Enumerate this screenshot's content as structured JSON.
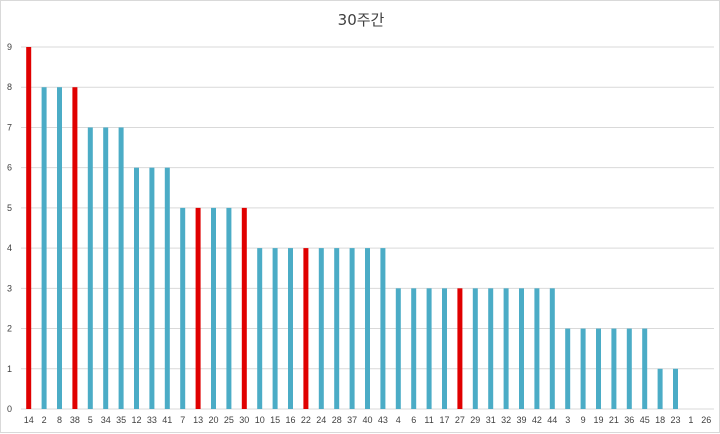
{
  "chart_data": {
    "type": "bar",
    "title": "30주간",
    "xlabel": "",
    "ylabel": "",
    "ylim": [
      0,
      9
    ],
    "yticks": [
      0,
      1,
      2,
      3,
      4,
      5,
      6,
      7,
      8,
      9
    ],
    "grid": true,
    "legend": "none",
    "colors": {
      "default": "#4bacc6",
      "highlight": "#e00000",
      "grid": "#d9d9d9"
    },
    "categories": [
      "14",
      "2",
      "8",
      "38",
      "5",
      "34",
      "35",
      "12",
      "33",
      "41",
      "7",
      "13",
      "20",
      "25",
      "30",
      "10",
      "15",
      "16",
      "22",
      "24",
      "28",
      "37",
      "40",
      "43",
      "4",
      "6",
      "11",
      "17",
      "27",
      "29",
      "31",
      "32",
      "39",
      "42",
      "44",
      "3",
      "9",
      "19",
      "21",
      "36",
      "45",
      "18",
      "23",
      "1",
      "26"
    ],
    "values": [
      9,
      8,
      8,
      8,
      7,
      7,
      7,
      6,
      6,
      6,
      5,
      5,
      5,
      5,
      5,
      4,
      4,
      4,
      4,
      4,
      4,
      4,
      4,
      4,
      3,
      3,
      3,
      3,
      3,
      3,
      3,
      3,
      3,
      3,
      3,
      2,
      2,
      2,
      2,
      2,
      2,
      1,
      1,
      0,
      0
    ],
    "highlighted": [
      "14",
      "38",
      "13",
      "30",
      "22",
      "27"
    ]
  }
}
